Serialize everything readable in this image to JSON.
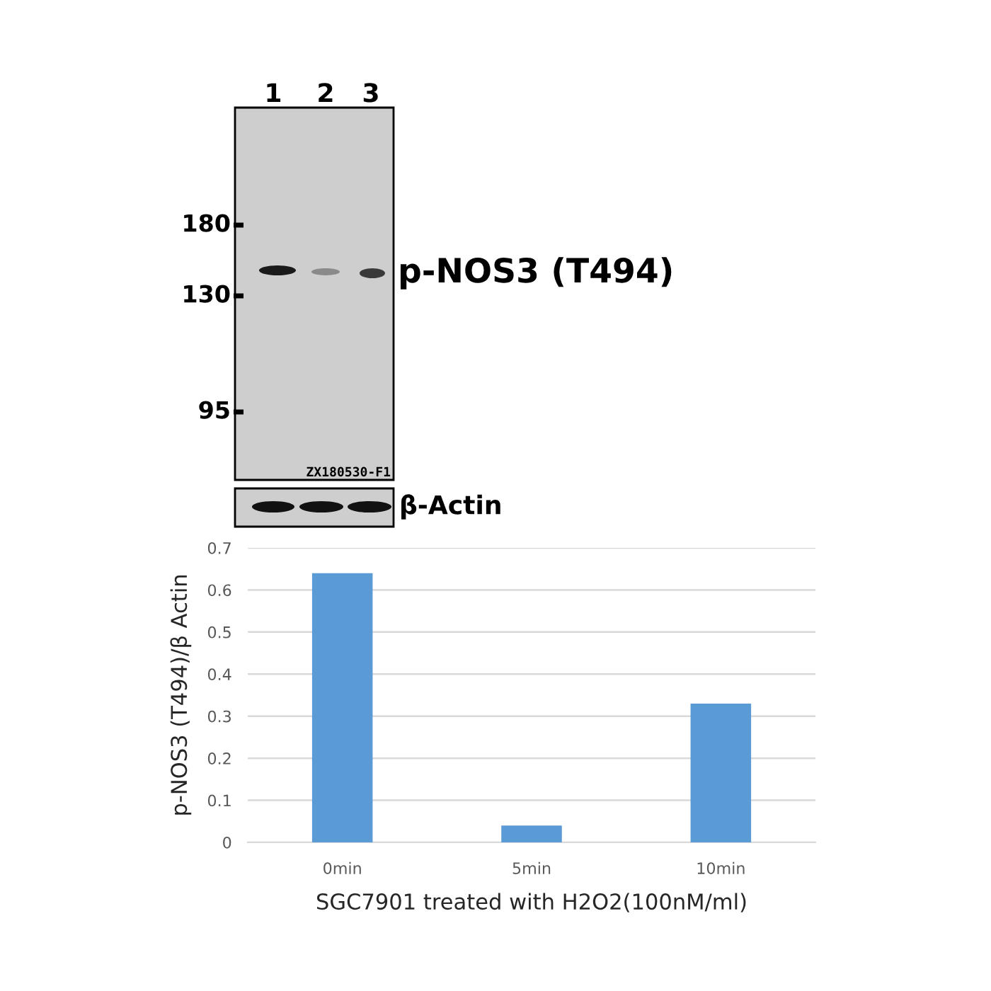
{
  "chart_data": [
    {
      "type": "other",
      "annotations": [
        "1",
        "2",
        "3",
        "180",
        "130",
        "95",
        "p-NOS3 (T494)",
        "ZX180530-F1",
        "β-Actin"
      ]
    },
    {
      "type": "bar",
      "categories": [
        "0min",
        "5min",
        "10min"
      ],
      "values": [
        0.64,
        0.04,
        0.33
      ],
      "color": "#5b9bd5",
      "xlabel": "SGC7901 treated with H2O2(100nM/ml)",
      "ylabel": "p-NOS3 (T494)/β Actin",
      "ylim": [
        0,
        0.7
      ],
      "yticks": [
        0,
        0.1,
        0.2,
        0.3,
        0.4,
        0.5,
        0.6,
        0.7
      ],
      "grid": "y"
    }
  ]
}
